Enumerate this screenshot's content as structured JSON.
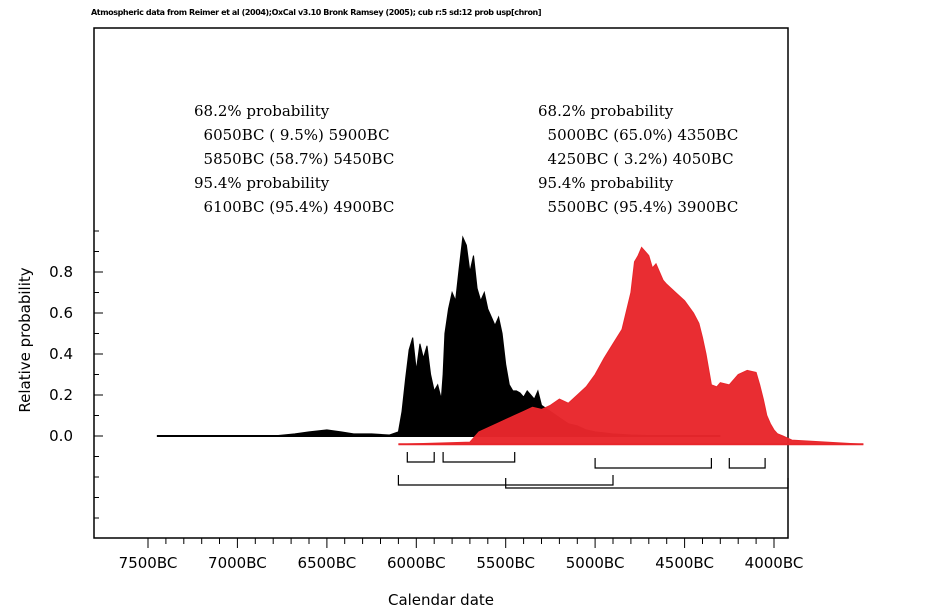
{
  "caption": "Atmospheric data from Reimer et al (2004);OxCal v3.10 Bronk Ramsey (2005); cub r:5 sd:12 prob usp[chron]",
  "colors": {
    "series1": "#000000",
    "series2": "#e8262b",
    "frame": "#000000"
  },
  "left_box": {
    "lines": [
      "68.2% probability",
      "  6050BC ( 9.5%) 5900BC",
      "  5850BC (58.7%) 5450BC",
      "95.4% probability",
      "  6100BC (95.4%) 4900BC"
    ]
  },
  "right_box": {
    "lines": [
      "68.2% probability",
      "  5000BC (65.0%) 4350BC",
      "  4250BC ( 3.2%) 4050BC",
      "95.4% probability",
      "  5500BC (95.4%) 3900BC"
    ]
  },
  "chart_data": {
    "type": "area",
    "xlabel": "Calendar date",
    "ylabel": "Relative probability",
    "xlim": [
      -7800,
      -3900
    ],
    "ylim": [
      0,
      1
    ],
    "x_ticks": [
      {
        "value": -7500,
        "label": "7500BC"
      },
      {
        "value": -7000,
        "label": "7000BC"
      },
      {
        "value": -6500,
        "label": "6500BC"
      },
      {
        "value": -6000,
        "label": "6000BC"
      },
      {
        "value": -5500,
        "label": "5500BC"
      },
      {
        "value": -5000,
        "label": "5000BC"
      },
      {
        "value": -4500,
        "label": "4500BC"
      },
      {
        "value": -4000,
        "label": "4000BC"
      }
    ],
    "y_ticks": [
      {
        "value": 0.0,
        "label": "0.0"
      },
      {
        "value": 0.2,
        "label": "0.2"
      },
      {
        "value": 0.4,
        "label": "0.4"
      },
      {
        "value": 0.6,
        "label": "0.6"
      },
      {
        "value": 0.8,
        "label": "0.8"
      }
    ],
    "series": [
      {
        "color": "#000000",
        "x": [
          -7450,
          -6800,
          -6680,
          -6600,
          -6500,
          -6420,
          -6350,
          -6250,
          -6150,
          -6100,
          -6080,
          -6060,
          -6040,
          -6020,
          -6000,
          -5980,
          -5960,
          -5940,
          -5920,
          -5900,
          -5880,
          -5860,
          -5850,
          -5840,
          -5820,
          -5800,
          -5780,
          -5760,
          -5740,
          -5720,
          -5700,
          -5680,
          -5660,
          -5640,
          -5620,
          -5600,
          -5580,
          -5560,
          -5540,
          -5520,
          -5500,
          -5480,
          -5460,
          -5440,
          -5420,
          -5400,
          -5380,
          -5360,
          -5340,
          -5320,
          -5300,
          -5250,
          -5200,
          -5150,
          -5100,
          -5050,
          -5000,
          -4950,
          -4900,
          -4800,
          -4600,
          -4300
        ],
        "y": [
          0.0,
          0.0,
          0.01,
          0.02,
          0.03,
          0.02,
          0.01,
          0.01,
          0.005,
          0.02,
          0.12,
          0.28,
          0.42,
          0.48,
          0.32,
          0.45,
          0.38,
          0.44,
          0.3,
          0.22,
          0.25,
          0.18,
          0.3,
          0.5,
          0.62,
          0.7,
          0.66,
          0.82,
          0.97,
          0.93,
          0.8,
          0.88,
          0.72,
          0.66,
          0.7,
          0.62,
          0.58,
          0.54,
          0.58,
          0.5,
          0.35,
          0.25,
          0.22,
          0.22,
          0.21,
          0.19,
          0.22,
          0.2,
          0.18,
          0.22,
          0.15,
          0.12,
          0.09,
          0.06,
          0.05,
          0.03,
          0.02,
          0.015,
          0.01,
          0.005,
          0.0,
          0.0
        ]
      },
      {
        "color": "#e8262b",
        "x": [
          -6100,
          -5700,
          -5650,
          -5600,
          -5550,
          -5500,
          -5450,
          -5400,
          -5350,
          -5300,
          -5250,
          -5200,
          -5150,
          -5100,
          -5050,
          -5000,
          -4950,
          -4900,
          -4850,
          -4800,
          -4780,
          -4760,
          -4740,
          -4720,
          -4700,
          -4680,
          -4660,
          -4640,
          -4620,
          -4600,
          -4550,
          -4500,
          -4450,
          -4420,
          -4400,
          -4380,
          -4350,
          -4320,
          -4300,
          -4250,
          -4200,
          -4150,
          -4100,
          -4080,
          -4060,
          -4050,
          -4040,
          -4020,
          -4000,
          -3980,
          -3950,
          -3900,
          -3500
        ],
        "y": [
          -0.04,
          -0.03,
          0.02,
          0.04,
          0.06,
          0.08,
          0.1,
          0.12,
          0.14,
          0.13,
          0.15,
          0.18,
          0.16,
          0.2,
          0.24,
          0.3,
          0.38,
          0.45,
          0.52,
          0.7,
          0.85,
          0.88,
          0.92,
          0.9,
          0.88,
          0.82,
          0.84,
          0.8,
          0.76,
          0.74,
          0.7,
          0.66,
          0.6,
          0.55,
          0.48,
          0.4,
          0.25,
          0.24,
          0.26,
          0.25,
          0.3,
          0.32,
          0.31,
          0.25,
          0.18,
          0.14,
          0.1,
          0.06,
          0.03,
          0.01,
          0.0,
          -0.02,
          -0.04
        ]
      }
    ],
    "ranges": [
      {
        "series": 0,
        "level": "68.2",
        "from": -6050,
        "to": -5900
      },
      {
        "series": 0,
        "level": "68.2",
        "from": -5850,
        "to": -5450
      },
      {
        "series": 1,
        "level": "68.2",
        "from": -5000,
        "to": -4350
      },
      {
        "series": 1,
        "level": "68.2",
        "from": -4250,
        "to": -4050
      },
      {
        "series": 0,
        "level": "95.4",
        "from": -6100,
        "to": -4900
      },
      {
        "series": 1,
        "level": "95.4",
        "from": -5500,
        "to": -3900
      }
    ]
  }
}
